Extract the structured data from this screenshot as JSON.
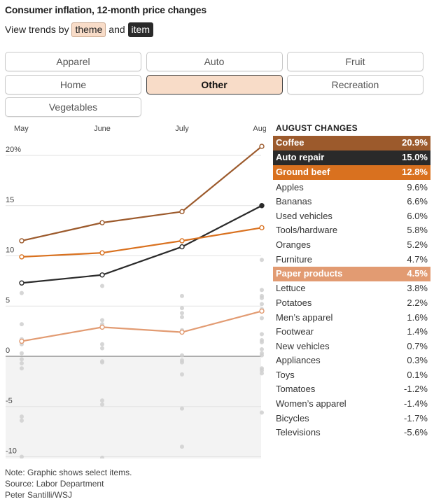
{
  "header": {
    "title": "Consumer inflation, 12-month price changes",
    "subtitle_prefix": "View trends by",
    "theme_label": "theme",
    "and_label": "and",
    "item_label": "item"
  },
  "themes": [
    {
      "label": "Apparel",
      "active": false
    },
    {
      "label": "Auto",
      "active": false
    },
    {
      "label": "Fruit",
      "active": false
    },
    {
      "label": "Home",
      "active": false
    },
    {
      "label": "Other",
      "active": true
    },
    {
      "label": "Recreation",
      "active": false
    },
    {
      "label": "Vegetables",
      "active": false
    }
  ],
  "changes_title": "AUGUST CHANGES",
  "changes": [
    {
      "name": "Coffee",
      "value": "20.9%",
      "highlight": "#9c5a2c"
    },
    {
      "name": "Auto repair",
      "value": "15.0%",
      "highlight": "#2a2a2a"
    },
    {
      "name": "Ground beef",
      "value": "12.8%",
      "highlight": "#d9711f"
    },
    {
      "name": "Apples",
      "value": "9.6%"
    },
    {
      "name": "Bananas",
      "value": "6.6%"
    },
    {
      "name": "Used vehicles",
      "value": "6.0%"
    },
    {
      "name": "Tools/hardware",
      "value": "5.8%"
    },
    {
      "name": "Oranges",
      "value": "5.2%"
    },
    {
      "name": "Furniture",
      "value": "4.7%"
    },
    {
      "name": "Paper products",
      "value": "4.5%",
      "highlight": "#e29b72"
    },
    {
      "name": "Lettuce",
      "value": "3.8%"
    },
    {
      "name": "Potatoes",
      "value": "2.2%"
    },
    {
      "name": "Men’s apparel",
      "value": "1.6%"
    },
    {
      "name": "Footwear",
      "value": "1.4%"
    },
    {
      "name": "New vehicles",
      "value": "0.7%"
    },
    {
      "name": "Appliances",
      "value": "0.3%"
    },
    {
      "name": "Toys",
      "value": "0.1%"
    },
    {
      "name": "Tomatoes",
      "value": "-1.2%"
    },
    {
      "name": "Women’s apparel",
      "value": "-1.4%"
    },
    {
      "name": "Bicycles",
      "value": "-1.7%"
    },
    {
      "name": "Televisions",
      "value": "-5.6%"
    }
  ],
  "notes": {
    "note": "Note: Graphic shows select items.",
    "source": "Source: Labor Department",
    "credit": "Peter Santilli/WSJ"
  },
  "chart_data": {
    "type": "line",
    "x": [
      "May",
      "June",
      "July",
      "Aug."
    ],
    "y_ticks": [
      {
        "value": 20,
        "label": "20%"
      },
      {
        "value": 15,
        "label": "15"
      },
      {
        "value": 10,
        "label": "10"
      },
      {
        "value": 5,
        "label": "5"
      },
      {
        "value": 0,
        "label": "0"
      },
      {
        "value": -5,
        "label": "-5"
      },
      {
        "value": -10,
        "label": "-10"
      }
    ],
    "ylim": [
      -10.5,
      21.5
    ],
    "grid": true,
    "highlight_series": [
      {
        "name": "Coffee",
        "color": "#9c5a2c",
        "values": [
          11.5,
          13.3,
          14.4,
          20.9
        ]
      },
      {
        "name": "Auto repair",
        "color": "#2a2a2a",
        "values": [
          7.3,
          8.1,
          10.9,
          15.0
        ]
      },
      {
        "name": "Ground beef",
        "color": "#d9711f",
        "values": [
          9.9,
          10.3,
          11.5,
          12.8
        ]
      },
      {
        "name": "Paper products",
        "color": "#e29b72",
        "values": [
          1.5,
          2.9,
          2.4,
          4.5
        ]
      }
    ],
    "background_points": [
      {
        "x": "May",
        "values": [
          6.3,
          3.2,
          1.7,
          1.2,
          0.3,
          -0.3,
          -0.7,
          -1.2,
          -6.0,
          -6.4,
          -10.0
        ]
      },
      {
        "x": "June",
        "values": [
          7.0,
          3.6,
          3.2,
          1.2,
          0.8,
          -0.5,
          -0.6,
          -4.4,
          -4.8,
          -10.1
        ]
      },
      {
        "x": "July",
        "values": [
          6.0,
          4.8,
          4.3,
          3.9,
          2.6,
          2.5,
          0.1,
          -0.4,
          -0.6,
          -1.8,
          -5.2,
          -9.0
        ]
      },
      {
        "x": "Aug.",
        "values": [
          9.6,
          6.6,
          6.0,
          5.8,
          5.2,
          4.7,
          3.8,
          2.2,
          1.6,
          1.4,
          0.7,
          0.3,
          0.1,
          -1.2,
          -1.4,
          -1.7,
          -5.6
        ]
      }
    ]
  }
}
